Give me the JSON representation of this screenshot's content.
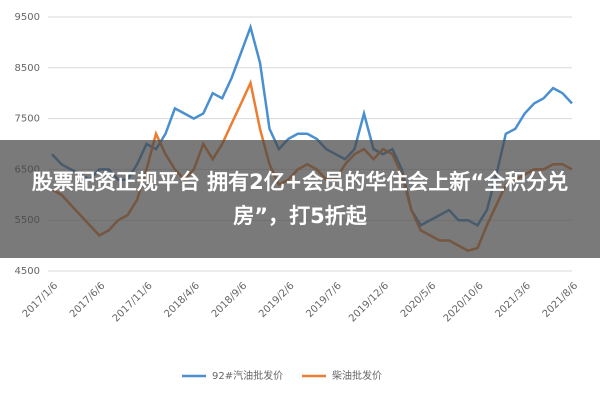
{
  "chart_data": {
    "type": "line",
    "annotation": "股票配资正规平台 拥有2亿+会员的华住会上新“全积分兑房”，打5折起",
    "categories": [
      "2017/1/6",
      null,
      null,
      null,
      null,
      "2017/6/6",
      null,
      null,
      null,
      null,
      "2017/11/6",
      null,
      null,
      null,
      null,
      "2018/4/6",
      null,
      null,
      null,
      null,
      "2018/9/6",
      null,
      null,
      null,
      null,
      "2019/2/6",
      null,
      null,
      null,
      null,
      "2019/7/6",
      null,
      null,
      null,
      null,
      "2019/12/6",
      null,
      null,
      null,
      null,
      "2020/5/6",
      null,
      null,
      null,
      null,
      "2020/10/6",
      null,
      null,
      null,
      null,
      "2021/3/6",
      null,
      null,
      null,
      null,
      "2021/8/6"
    ],
    "series": [
      {
        "name": "92#汽油批发价",
        "color": "#4a8fd0",
        "values": [
          6800,
          6600,
          6500,
          6400,
          6300,
          6500,
          6500,
          6300,
          6300,
          6600,
          7000,
          6900,
          7200,
          7700,
          7600,
          7500,
          7600,
          8000,
          7900,
          8300,
          8800,
          9300,
          8600,
          7300,
          6900,
          7100,
          7200,
          7200,
          7100,
          6900,
          6800,
          6700,
          6900,
          7600,
          6900,
          6800,
          6900,
          6500,
          5700,
          5400,
          5500,
          5600,
          5700,
          5500,
          5500,
          5400,
          5700,
          6400,
          7200,
          7300,
          7600,
          7800,
          7900,
          8100,
          8000,
          7800
        ]
      },
      {
        "name": "柴油批发价",
        "color": "#ed7d31",
        "values": [
          6100,
          6000,
          5800,
          5600,
          5400,
          5200,
          5300,
          5500,
          5600,
          5900,
          6500,
          7200,
          6800,
          6500,
          6300,
          6500,
          7000,
          6700,
          7000,
          7400,
          7800,
          8200,
          7300,
          6600,
          6200,
          6300,
          6500,
          6600,
          6500,
          6300,
          6300,
          6600,
          6800,
          6900,
          6700,
          6900,
          6800,
          6400,
          5700,
          5300,
          5200,
          5100,
          5100,
          5000,
          4900,
          4950,
          5400,
          5800,
          6200,
          6300,
          6400,
          6500,
          6500,
          6600,
          6600,
          6500
        ]
      }
    ],
    "ylim": [
      4500,
      9500
    ],
    "yticks": [
      4500,
      5500,
      6500,
      7500,
      8500,
      9500
    ],
    "grid": true
  }
}
